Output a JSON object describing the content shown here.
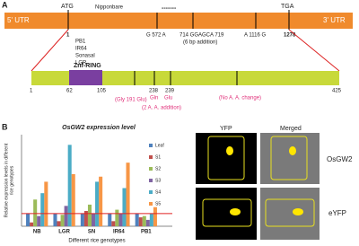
{
  "panel_a": {
    "label": "A",
    "utr5": "5' UTR",
    "atg": "ATG",
    "cultivar": "Nipponbare",
    "dashes": "-------",
    "tga": "TGA",
    "utr3": "3' UTR",
    "start": "1",
    "varieties": [
      "PB1",
      "IR64",
      "Sonasal",
      "LGR"
    ],
    "snp1": "G 572 A",
    "insertion": "714 GGAGCA 719",
    "insertion_note": "(6 bp addition)",
    "snp2": "A 1116 G",
    "end": "1278",
    "domain": "Znf-RING",
    "protein_positions": [
      "1",
      "62",
      "105",
      "238",
      "239",
      "425"
    ],
    "change1": "(Gly 191 Glu)",
    "change2_aa": [
      "Gln",
      "Glu"
    ],
    "change2": "(2 A. A. addition)",
    "change3": "(No A. A. change)"
  },
  "chart_data": {
    "type": "bar",
    "panel_label": "B",
    "title": "OsGW2 expression level",
    "categories": [
      "NB",
      "LGR",
      "SN",
      "IR64",
      "PB1"
    ],
    "series": [
      {
        "name": "Leaf",
        "color": "#4f81bd",
        "values": [
          1,
          1,
          1,
          1,
          1
        ]
      },
      {
        "name": "S1",
        "color": "#c0504d",
        "values": [
          0.3,
          0.4,
          1.2,
          0.4,
          0.7
        ]
      },
      {
        "name": "S2",
        "color": "#9bbb59",
        "values": [
          2.1,
          0.9,
          1.7,
          1.3,
          0.8
        ]
      },
      {
        "name": "S3",
        "color": "#8064a2",
        "values": [
          0.8,
          1.6,
          1.0,
          1.0,
          0.5
        ]
      },
      {
        "name": "S4",
        "color": "#4bacc6",
        "values": [
          2.6,
          6.4,
          3.5,
          3.0,
          1.0
        ]
      },
      {
        "name": "S5",
        "color": "#f79646",
        "values": [
          3.5,
          4.1,
          3.9,
          5.0,
          1.5
        ]
      }
    ],
    "reference_line": 1,
    "reference_color": "#e02020",
    "ylim": [
      0,
      7.2
    ],
    "ylabel": [
      "Relative expression levels in different",
      "rice genotypes"
    ],
    "xlabel": "Different rice genotypes"
  },
  "panel_c": {
    "headers": [
      "YFP",
      "Merged"
    ],
    "rows": [
      "OsGW2",
      "eYFP"
    ]
  }
}
